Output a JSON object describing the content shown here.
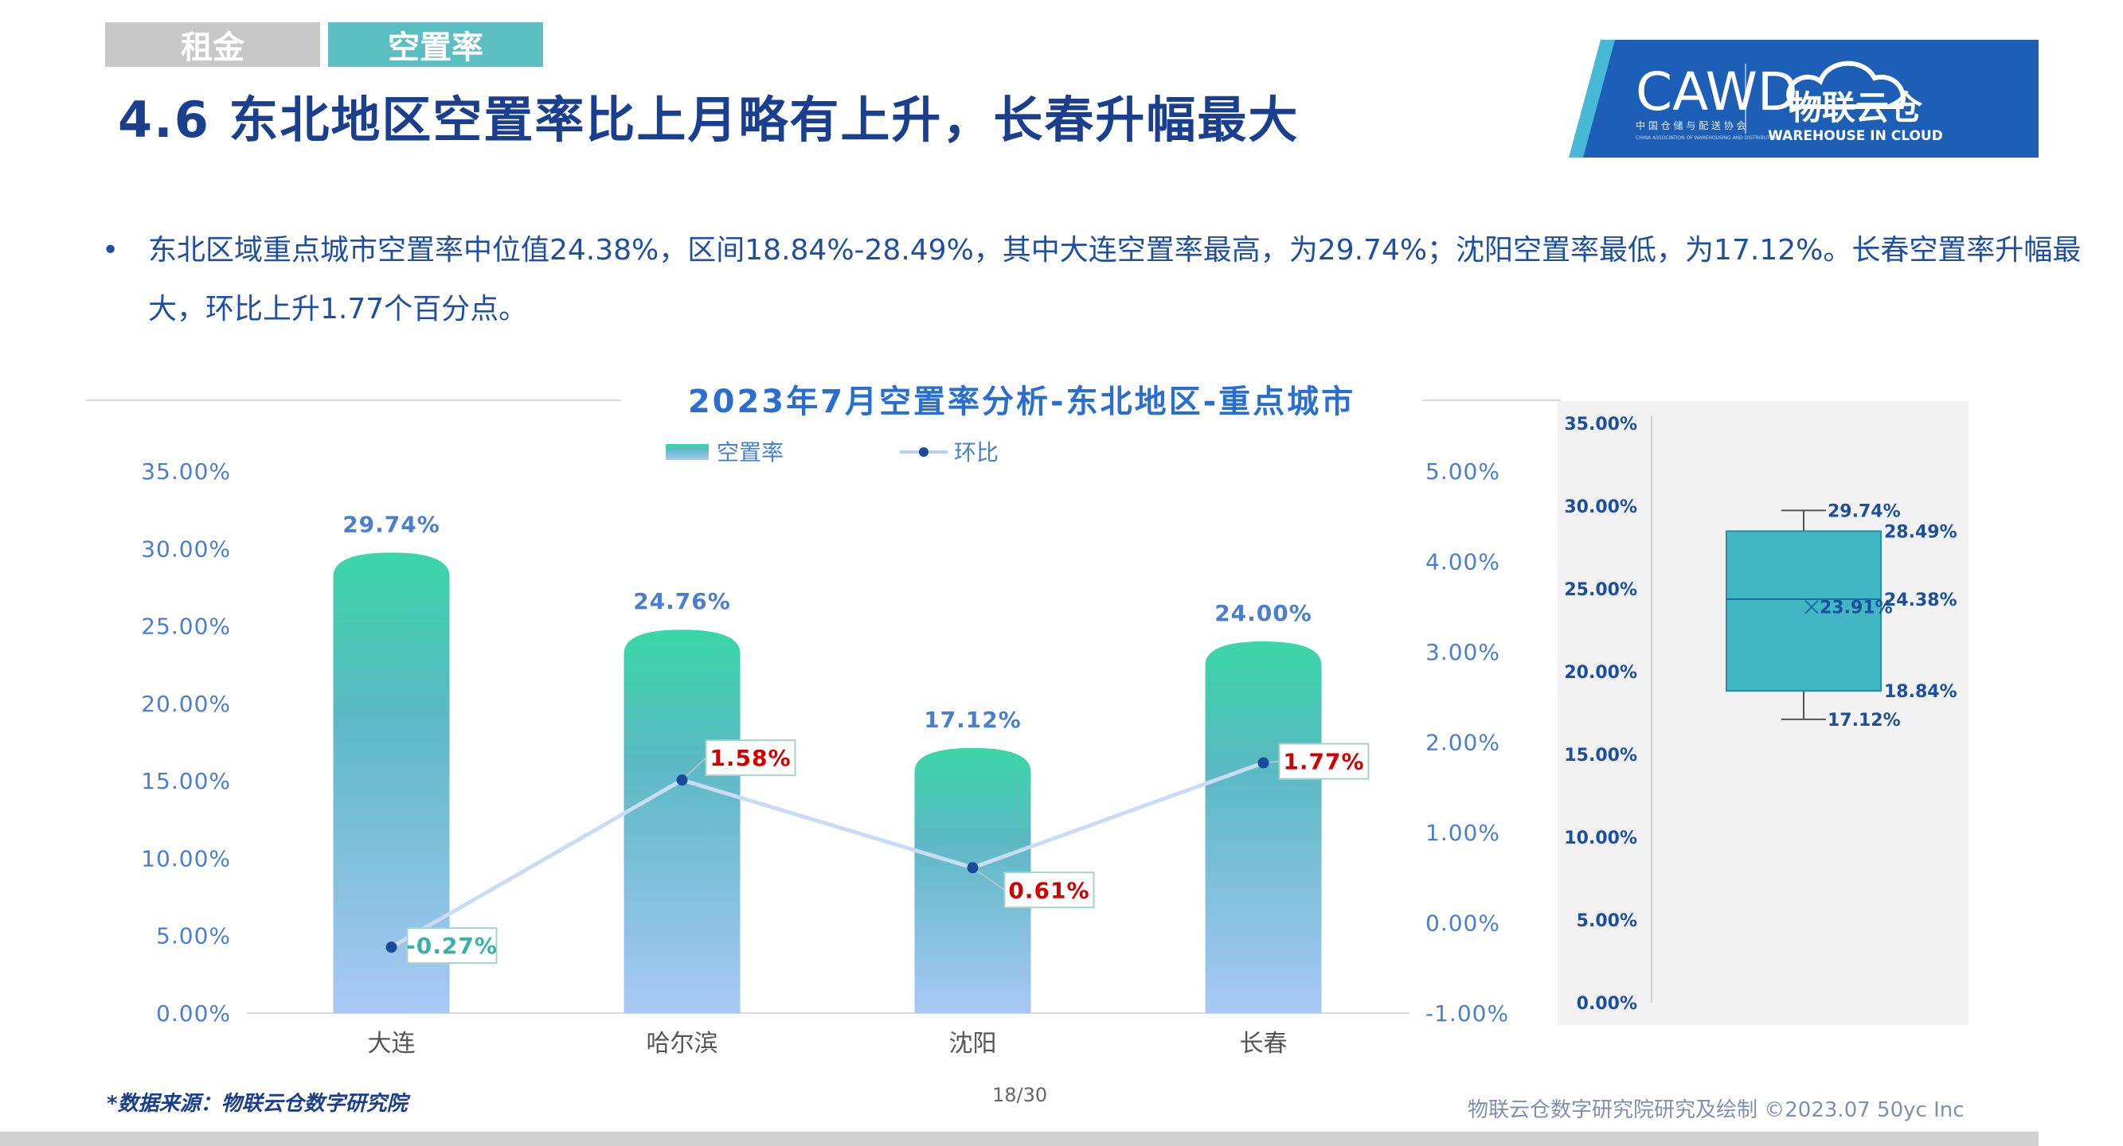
{
  "tabs": [
    "租金",
    "空置率"
  ],
  "title": "4.6 东北地区空置率比上月略有上升，长春升幅最大",
  "logo": {
    "main": "CAWD",
    "sub": "中 国 仓 储 与 配 送 协 会",
    "sub_en": "CHINA ASSOCIATION OF WAREHOUSING AND DISTRIBUTION",
    "brand": "物联云仓",
    "brand_en": "WAREHOUSE IN CLOUD"
  },
  "bullet": {
    "marker": "•",
    "text": "东北区域重点城市空置率中位值24.38%，区间18.84%-28.49%，其中大连空置率最高，为29.74%；沈阳空置率最低，为17.12%。长春空置率升幅最大，环比上升1.77个百分点。"
  },
  "chart_data": {
    "type": "bar",
    "title": "2023年7月空置率分析-东北地区-重点城市",
    "categories": [
      "大连",
      "哈尔滨",
      "沈阳",
      "长春"
    ],
    "series": [
      {
        "name": "空置率",
        "type": "bar",
        "axis": "left",
        "values": [
          29.74,
          24.76,
          17.12,
          24.0
        ],
        "labels": [
          "29.74%",
          "24.76%",
          "17.12%",
          "24.00%"
        ]
      },
      {
        "name": "环比",
        "type": "line",
        "axis": "right",
        "values": [
          -0.27,
          1.58,
          0.61,
          1.77
        ],
        "labels": [
          "-0.27%",
          "1.58%",
          "0.61%",
          "1.77%"
        ]
      }
    ],
    "ylim_left": [
      0,
      35
    ],
    "yticks_left": [
      "0.00%",
      "5.00%",
      "10.00%",
      "15.00%",
      "20.00%",
      "25.00%",
      "30.00%",
      "35.00%"
    ],
    "ylim_right": [
      -1,
      5
    ],
    "yticks_right": [
      "-1.00%",
      "0.00%",
      "1.00%",
      "2.00%",
      "3.00%",
      "4.00%",
      "5.00%"
    ],
    "legend_position": "top-center",
    "colors": {
      "bar_top": "#3ad6a6",
      "bar_mid": "#5bb9c4",
      "bar_bottom": "#a9c8f5",
      "line": "#c8dcf5",
      "point": "#1a4a9a",
      "neg_label": "#3ab0a8",
      "pos_label": "#d40000",
      "bar_label": "#4a7fcf",
      "axis_text": "#4a7fcf"
    },
    "boxplot": {
      "type": "box",
      "ylim": [
        0,
        35
      ],
      "yticks": [
        "0.00%",
        "5.00%",
        "10.00%",
        "15.00%",
        "20.00%",
        "25.00%",
        "30.00%",
        "35.00%"
      ],
      "max": 29.74,
      "q3": 28.49,
      "median": 24.38,
      "mean": 23.91,
      "q1": 18.84,
      "min": 17.12,
      "labels": {
        "max": "29.74%",
        "q3": "28.49%",
        "median": "24.38%",
        "mean": "23.91%",
        "q1": "18.84%",
        "min": "17.12%"
      },
      "colors": {
        "box": "#40b7c3",
        "text": "#1b4fa0"
      }
    }
  },
  "footer": {
    "source": "*数据来源：物联云仓数字研究院",
    "page": "18/30",
    "right": "物联云仓数字研究院研究及绘制    ©2023.07 50yc Inc"
  }
}
